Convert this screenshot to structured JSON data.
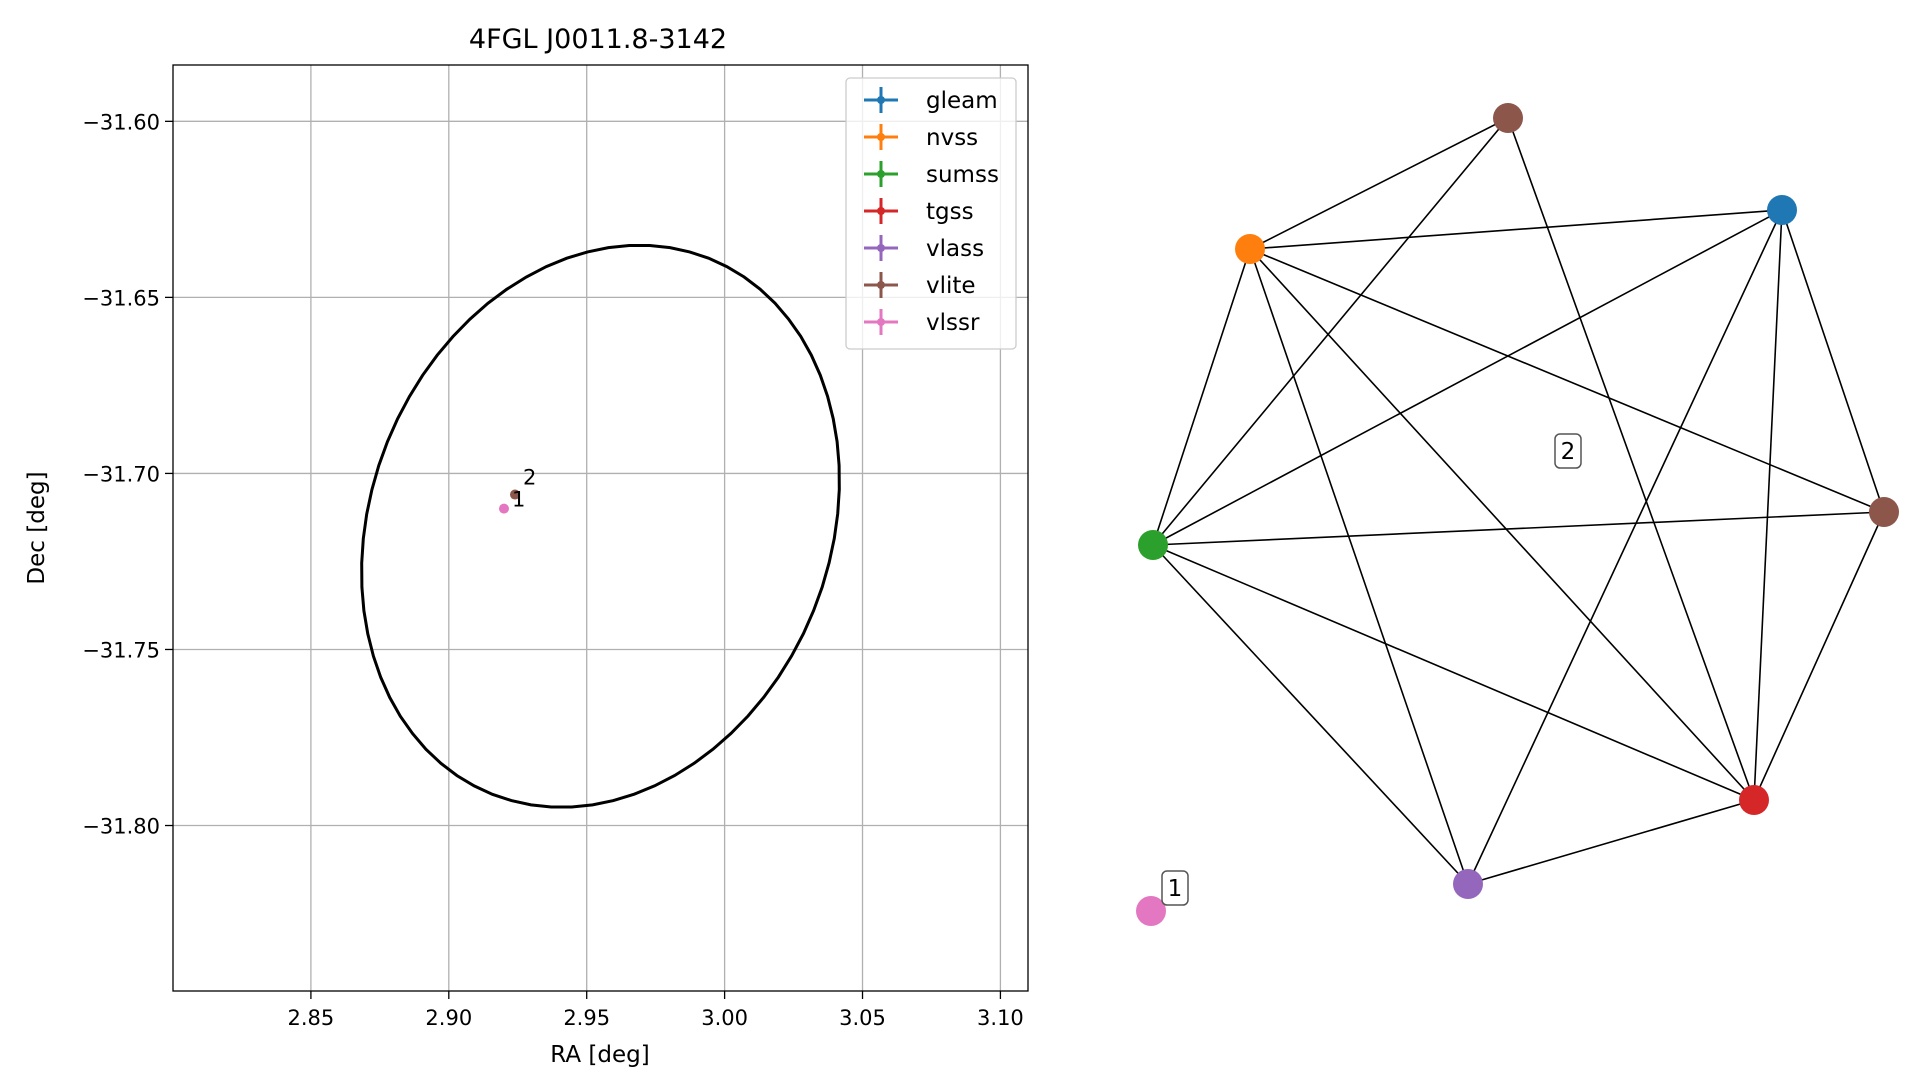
{
  "chart_data": [
    {
      "type": "scatter",
      "title": "4FGL J0011.8-3142",
      "xlabel": "RA [deg]",
      "ylabel": "Dec [deg]",
      "xlim": [
        2.8,
        3.11
      ],
      "ylim": [
        -31.847,
        -31.584
      ],
      "xticks": [
        2.85,
        2.9,
        2.95,
        3.0,
        3.05,
        3.1
      ],
      "xtick_labels": [
        "2.85",
        "2.90",
        "2.95",
        "3.00",
        "3.05",
        "3.10"
      ],
      "yticks": [
        -31.6,
        -31.65,
        -31.7,
        -31.75,
        -31.8
      ],
      "ytick_labels": [
        "−31.60",
        "−31.65",
        "−31.70",
        "−31.75",
        "−31.80"
      ],
      "grid": true,
      "legend_position": "top-right",
      "legend": [
        {
          "label": "gleam",
          "color": "#1f77b4"
        },
        {
          "label": "nvss",
          "color": "#ff7f0e"
        },
        {
          "label": "sumss",
          "color": "#2ca02c"
        },
        {
          "label": "tgss",
          "color": "#d62728"
        },
        {
          "label": "vlass",
          "color": "#9467bd"
        },
        {
          "label": "vlite",
          "color": "#8c564b"
        },
        {
          "label": "vlssr",
          "color": "#e377c2"
        }
      ],
      "ellipse": {
        "center": [
          2.955,
          -31.715
        ],
        "semi_major_deg": 0.0835,
        "semi_minor_deg": 0.0695,
        "angle_deg": 58,
        "color": "#000000"
      },
      "points": [
        {
          "label": "2",
          "x": 2.924,
          "y": -31.706,
          "color": "#8c564b"
        },
        {
          "label": "1",
          "x": 2.92,
          "y": -31.71,
          "color": "#e377c2"
        }
      ]
    },
    {
      "type": "network",
      "nodes": [
        {
          "id": "gleam",
          "color": "#1f77b4"
        },
        {
          "id": "vlite-a",
          "color": "#8c564b"
        },
        {
          "id": "nvss",
          "color": "#ff7f0e"
        },
        {
          "id": "sumss",
          "color": "#2ca02c"
        },
        {
          "id": "vlass",
          "color": "#9467bd"
        },
        {
          "id": "tgss",
          "color": "#d62728"
        },
        {
          "id": "vlite-b",
          "color": "#8c564b"
        },
        {
          "id": "vlssr",
          "color": "#e377c2"
        }
      ],
      "edges": [
        [
          "vlite-a",
          "nvss"
        ],
        [
          "vlite-a",
          "sumss"
        ],
        [
          "vlite-a",
          "tgss"
        ],
        [
          "gleam",
          "nvss"
        ],
        [
          "gleam",
          "sumss"
        ],
        [
          "gleam",
          "vlass"
        ],
        [
          "gleam",
          "tgss"
        ],
        [
          "gleam",
          "vlite-b"
        ],
        [
          "nvss",
          "sumss"
        ],
        [
          "nvss",
          "vlass"
        ],
        [
          "nvss",
          "tgss"
        ],
        [
          "nvss",
          "vlite-b"
        ],
        [
          "sumss",
          "vlite-b"
        ],
        [
          "sumss",
          "tgss"
        ],
        [
          "sumss",
          "vlass"
        ],
        [
          "vlass",
          "tgss"
        ],
        [
          "tgss",
          "vlite-b"
        ]
      ],
      "group_labels": [
        "2",
        "1"
      ]
    }
  ]
}
